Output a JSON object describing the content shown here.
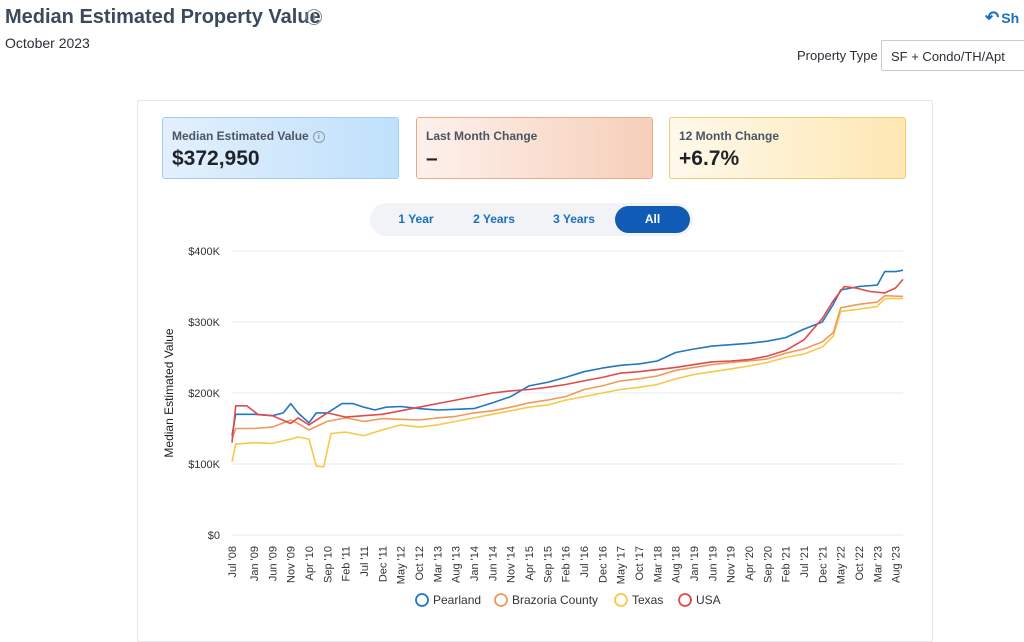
{
  "header": {
    "title": "Median Estimated Property Value",
    "subtitle": "October 2023",
    "share_label": "Sh",
    "info_icon": "info-icon",
    "share_icon": "share-arrow-icon"
  },
  "filter": {
    "label": "Property Type",
    "selected": "SF + Condo/TH/Apt"
  },
  "kpis": [
    {
      "label": "Median Estimated Value",
      "value": "$372,950"
    },
    {
      "label": "Last Month Change",
      "value": "–"
    },
    {
      "label": "12 Month Change",
      "value": "+6.7%"
    }
  ],
  "range_buttons": [
    "1 Year",
    "2 Years",
    "3 Years",
    "All"
  ],
  "range_active": "All",
  "colors": {
    "Pearland": "#1f78c1",
    "Brazoria County": "#f0995c",
    "Texas": "#f7c948",
    "USA": "#e04a4a"
  },
  "chart_data": {
    "type": "line",
    "ylabel": "Median Estimated Value",
    "xlabel": "",
    "ylim": [
      0,
      400000
    ],
    "yticks": [
      0,
      100000,
      200000,
      300000,
      400000
    ],
    "ytick_labels": [
      "$0",
      "$100K",
      "$200K",
      "$300K",
      "$400K"
    ],
    "xlim": [
      "2008-07",
      "2023-10"
    ],
    "xtick_labels": [
      "Jul '08",
      "Jan '09",
      "Jun '09",
      "Nov '09",
      "Apr '10",
      "Sep '10",
      "Feb '11",
      "Jul '11",
      "Dec '11",
      "May '12",
      "Oct '12",
      "Mar '13",
      "Aug '13",
      "Jan '14",
      "Jun '14",
      "Nov '14",
      "Apr '15",
      "Sep '15",
      "Feb '16",
      "Jul '16",
      "Dec '16",
      "May '17",
      "Oct '17",
      "Mar '18",
      "Aug '18",
      "Jan '19",
      "Jun '19",
      "Nov '19",
      "Apr '20",
      "Sep '20",
      "Feb '21",
      "Jul '21",
      "Dec '21",
      "May '22",
      "Oct '22",
      "Mar '23",
      "Aug '23"
    ],
    "xtick_dates": [
      "2008-07",
      "2009-01",
      "2009-06",
      "2009-11",
      "2010-04",
      "2010-09",
      "2011-02",
      "2011-07",
      "2011-12",
      "2012-05",
      "2012-10",
      "2013-03",
      "2013-08",
      "2014-01",
      "2014-06",
      "2014-11",
      "2015-04",
      "2015-09",
      "2016-02",
      "2016-07",
      "2016-12",
      "2017-05",
      "2017-10",
      "2018-03",
      "2018-08",
      "2019-01",
      "2019-06",
      "2019-11",
      "2020-04",
      "2020-09",
      "2021-02",
      "2021-07",
      "2021-12",
      "2022-05",
      "2022-10",
      "2023-03",
      "2023-08"
    ],
    "grid": true,
    "legend_position": "bottom",
    "series": [
      {
        "name": "Pearland",
        "x": [
          "2008-07",
          "2008-08",
          "2009-01",
          "2009-06",
          "2009-09",
          "2009-11",
          "2010-01",
          "2010-04",
          "2010-06",
          "2010-09",
          "2011-01",
          "2011-04",
          "2011-07",
          "2011-10",
          "2012-01",
          "2012-05",
          "2012-10",
          "2013-03",
          "2013-08",
          "2014-01",
          "2014-06",
          "2014-11",
          "2015-04",
          "2015-09",
          "2016-02",
          "2016-07",
          "2016-12",
          "2017-05",
          "2017-10",
          "2018-03",
          "2018-08",
          "2019-01",
          "2019-06",
          "2019-11",
          "2020-04",
          "2020-09",
          "2021-02",
          "2021-07",
          "2021-12",
          "2022-03",
          "2022-05",
          "2022-10",
          "2023-03",
          "2023-05",
          "2023-08",
          "2023-10"
        ],
        "y": [
          140000,
          170000,
          170000,
          168000,
          172000,
          185000,
          172000,
          158000,
          172000,
          172000,
          185000,
          185000,
          180000,
          176000,
          180000,
          181000,
          178000,
          176000,
          177000,
          178000,
          186000,
          195000,
          210000,
          215000,
          222000,
          230000,
          235000,
          239000,
          241000,
          245000,
          257000,
          262000,
          266000,
          268000,
          270000,
          273000,
          278000,
          290000,
          300000,
          325000,
          345000,
          350000,
          352000,
          371000,
          371000,
          373000
        ]
      },
      {
        "name": "Brazoria County",
        "x": [
          "2008-07",
          "2008-08",
          "2009-01",
          "2009-06",
          "2009-11",
          "2010-01",
          "2010-04",
          "2010-09",
          "2011-02",
          "2011-07",
          "2011-12",
          "2012-05",
          "2012-10",
          "2013-03",
          "2013-08",
          "2014-01",
          "2014-06",
          "2014-11",
          "2015-04",
          "2015-09",
          "2016-02",
          "2016-07",
          "2016-12",
          "2017-05",
          "2017-10",
          "2018-03",
          "2018-08",
          "2019-01",
          "2019-06",
          "2019-11",
          "2020-04",
          "2020-09",
          "2021-02",
          "2021-07",
          "2021-12",
          "2022-03",
          "2022-05",
          "2022-10",
          "2023-03",
          "2023-05",
          "2023-10"
        ],
        "y": [
          135000,
          150000,
          150000,
          152000,
          162000,
          157000,
          148000,
          160000,
          165000,
          160000,
          164000,
          163000,
          162000,
          165000,
          167000,
          172000,
          175000,
          180000,
          186000,
          190000,
          195000,
          205000,
          210000,
          217000,
          220000,
          224000,
          232000,
          236000,
          240000,
          243000,
          245000,
          248000,
          256000,
          262000,
          272000,
          285000,
          320000,
          325000,
          328000,
          337000,
          336000
        ]
      },
      {
        "name": "Texas",
        "x": [
          "2008-07",
          "2008-08",
          "2009-01",
          "2009-06",
          "2009-11",
          "2010-01",
          "2010-04",
          "2010-06",
          "2010-08",
          "2010-10",
          "2011-02",
          "2011-07",
          "2011-12",
          "2012-05",
          "2012-10",
          "2013-03",
          "2013-08",
          "2014-01",
          "2014-06",
          "2014-11",
          "2015-04",
          "2015-09",
          "2016-02",
          "2016-07",
          "2016-12",
          "2017-05",
          "2017-10",
          "2018-03",
          "2018-08",
          "2019-01",
          "2019-06",
          "2019-11",
          "2020-04",
          "2020-09",
          "2021-02",
          "2021-07",
          "2021-12",
          "2022-03",
          "2022-05",
          "2022-10",
          "2023-03",
          "2023-05",
          "2023-10"
        ],
        "y": [
          103000,
          128000,
          130000,
          129000,
          135000,
          138000,
          135000,
          97000,
          96000,
          143000,
          145000,
          140000,
          148000,
          155000,
          152000,
          155000,
          160000,
          165000,
          170000,
          175000,
          180000,
          183000,
          190000,
          195000,
          200000,
          205000,
          208000,
          212000,
          220000,
          226000,
          230000,
          234000,
          238000,
          243000,
          250000,
          255000,
          265000,
          280000,
          315000,
          318000,
          322000,
          333000,
          333000
        ]
      },
      {
        "name": "USA",
        "x": [
          "2008-07",
          "2008-08",
          "2008-11",
          "2009-02",
          "2009-06",
          "2009-11",
          "2010-01",
          "2010-04",
          "2010-09",
          "2011-02",
          "2011-07",
          "2011-12",
          "2012-05",
          "2012-10",
          "2013-03",
          "2013-08",
          "2014-01",
          "2014-06",
          "2014-11",
          "2015-04",
          "2015-09",
          "2016-02",
          "2016-07",
          "2016-12",
          "2017-05",
          "2017-10",
          "2018-03",
          "2018-08",
          "2019-01",
          "2019-06",
          "2019-11",
          "2020-04",
          "2020-09",
          "2021-02",
          "2021-07",
          "2021-12",
          "2022-03",
          "2022-06",
          "2022-09",
          "2023-01",
          "2023-05",
          "2023-08",
          "2023-10"
        ],
        "y": [
          130000,
          182000,
          182000,
          170000,
          168000,
          157000,
          165000,
          155000,
          172000,
          166000,
          168000,
          170000,
          175000,
          180000,
          185000,
          190000,
          195000,
          200000,
          203000,
          205000,
          208000,
          212000,
          217000,
          222000,
          228000,
          230000,
          233000,
          236000,
          240000,
          244000,
          245000,
          247000,
          252000,
          260000,
          275000,
          305000,
          330000,
          350000,
          348000,
          343000,
          341000,
          348000,
          360000
        ]
      }
    ]
  }
}
